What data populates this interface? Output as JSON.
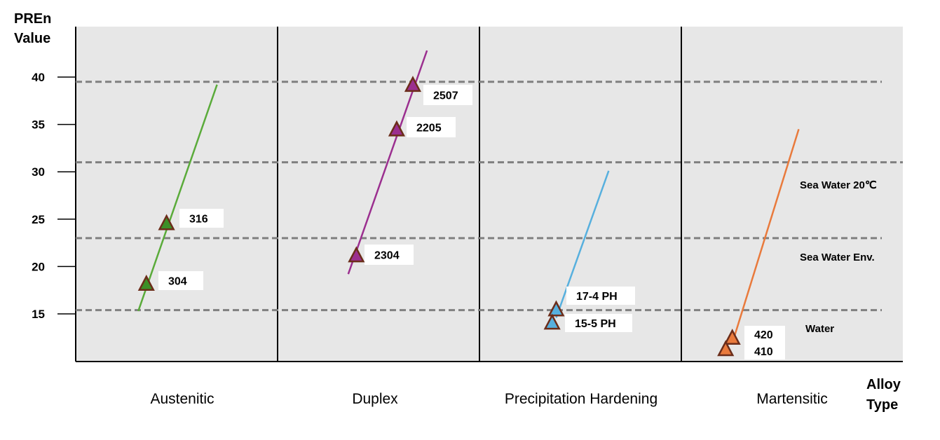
{
  "colors": {
    "panel_bg": "#e7e7e7",
    "axis": "#000000",
    "threshold_line": "#808080",
    "label_box": "#ffffff",
    "marker_outline": "#6b2d1a"
  },
  "chart_data": {
    "type": "scatter",
    "title": "",
    "ylabel": [
      "PREn",
      "Value"
    ],
    "xlabel": [
      "Alloy",
      "Type"
    ],
    "ylim": [
      10,
      45
    ],
    "yticks": [
      15,
      20,
      25,
      30,
      35,
      40
    ],
    "grid": false,
    "categories": [
      "Austenitic",
      "Duplex",
      "Precipitation Hardening",
      "Martensitic"
    ],
    "thresholds": [
      {
        "value": 39.5,
        "label": ""
      },
      {
        "value": 31,
        "label": "Sea Water 20℃"
      },
      {
        "value": 23,
        "label": "Sea Water Env."
      },
      {
        "value": 15.4,
        "label": "Water"
      }
    ],
    "series": [
      {
        "category": "Austenitic",
        "color": "#5aab3a",
        "marker_color": "#3c8f27",
        "line": [
          [
            0.31,
            15.3
          ],
          [
            0.7,
            39.2
          ]
        ],
        "points": [
          {
            "label": "304",
            "cat_pos": 0.35,
            "y": 18.2
          },
          {
            "label": "316",
            "cat_pos": 0.45,
            "y": 24.6
          }
        ]
      },
      {
        "category": "Duplex",
        "color": "#9b2f8f",
        "marker_color": "#9b2f8f",
        "line": [
          [
            0.35,
            19.2
          ],
          [
            0.74,
            42.8
          ]
        ],
        "points": [
          {
            "label": "2304",
            "cat_pos": 0.39,
            "y": 21.2
          },
          {
            "label": "2205",
            "cat_pos": 0.59,
            "y": 34.5
          },
          {
            "label": "2507",
            "cat_pos": 0.67,
            "y": 39.2
          }
        ]
      },
      {
        "category": "Precipitation Hardening",
        "color": "#57b0de",
        "marker_color": "#57b0de",
        "line": [
          [
            0.38,
            14.6
          ],
          [
            0.64,
            30.1
          ]
        ],
        "points": [
          {
            "label": "17-4 PH",
            "cat_pos": 0.38,
            "y": 15.5
          },
          {
            "label": "15-5 PH",
            "cat_pos": 0.36,
            "y": 14.1
          }
        ]
      },
      {
        "category": "Martensitic",
        "color": "#e97a3c",
        "marker_color": "#e97a3c",
        "line": [
          [
            0.23,
            11.9
          ],
          [
            0.53,
            34.5
          ]
        ],
        "points": [
          {
            "label": "420",
            "cat_pos": 0.23,
            "y": 12.5
          },
          {
            "label": "410",
            "cat_pos": 0.2,
            "y": 11.3
          }
        ]
      }
    ]
  }
}
